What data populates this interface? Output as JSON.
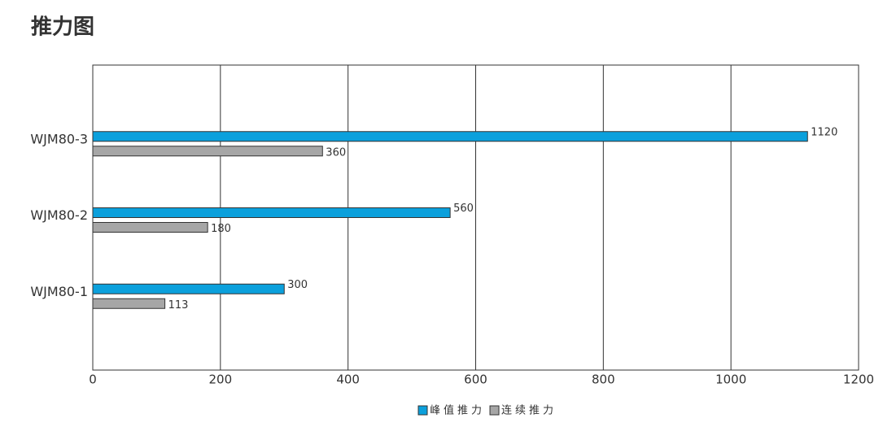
{
  "chart_data": {
    "type": "bar",
    "orientation": "horizontal",
    "title": "推力图",
    "categories": [
      "WJM80-3",
      "WJM80-2",
      "WJM80-1"
    ],
    "series": [
      {
        "name": "峰值推力",
        "color": "#0ba0dc",
        "values": [
          1120,
          560,
          300
        ]
      },
      {
        "name": "连续推力",
        "color": "#a6a6a6",
        "values": [
          360,
          180,
          113
        ]
      }
    ],
    "xlim": [
      0,
      1200
    ],
    "xticks": [
      0,
      200,
      400,
      600,
      800,
      1000,
      1200
    ],
    "grid": true
  }
}
